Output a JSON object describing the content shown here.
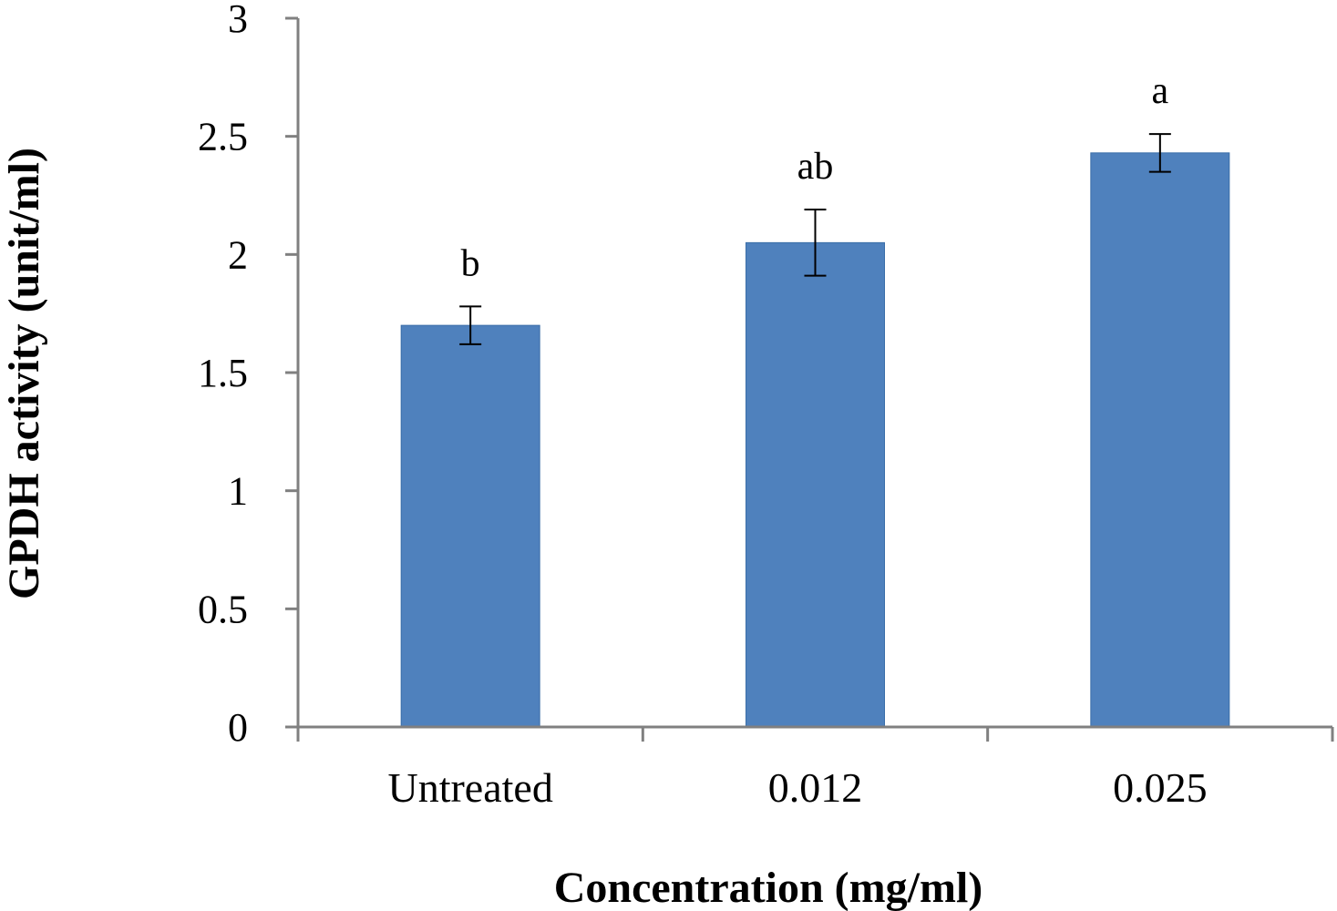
{
  "chart_data": {
    "type": "bar",
    "title": "",
    "xlabel": "Concentration (mg/ml)",
    "ylabel": "GPDH activity (unit/ml)",
    "categories": [
      "Untreated",
      "0.012",
      "0.025"
    ],
    "values": [
      1.7,
      2.05,
      2.43
    ],
    "error": [
      0.08,
      0.14,
      0.08
    ],
    "significance_labels": [
      "b",
      "ab",
      "a"
    ],
    "ylim": [
      0,
      3
    ],
    "yticks": [
      0,
      0.5,
      1,
      1.5,
      2,
      2.5,
      3
    ],
    "ytick_labels": [
      "0",
      "0.5",
      "1",
      "1.5",
      "2",
      "2.5",
      "3"
    ],
    "grid": false,
    "legend": "none",
    "colors": {
      "bar": "#4F81BD",
      "bar_edge": "#3A6DA8",
      "axis": "#808080",
      "error_bar": "#000000"
    }
  }
}
